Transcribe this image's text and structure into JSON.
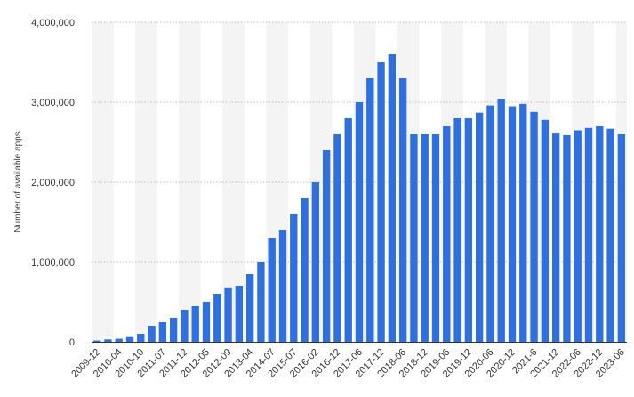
{
  "chart_data": {
    "type": "bar",
    "title": "",
    "xlabel": "",
    "ylabel": "Number of available apps",
    "ylim": [
      0,
      4000000
    ],
    "yticks": [
      {
        "value": 0,
        "label": "0"
      },
      {
        "value": 1000000,
        "label": "1,000,000"
      },
      {
        "value": 2000000,
        "label": "2,000,000"
      },
      {
        "value": 3000000,
        "label": "3,000,000"
      },
      {
        "value": 4000000,
        "label": "4,000,000"
      }
    ],
    "grid": true,
    "legend": "none",
    "bar_color": "#2f6fde",
    "band_color": "#f4f4f4",
    "categories": [
      "2009-12",
      "",
      "2010-04",
      "",
      "2010-10",
      "",
      "2011-07",
      "",
      "2011-12",
      "",
      "2012-05",
      "",
      "2012-09",
      "",
      "2013-04",
      "",
      "2014-07",
      "",
      "2015-07",
      "",
      "2016-02",
      "",
      "2016-12",
      "",
      "2017-06",
      "",
      "2017-12",
      "",
      "2018-06",
      "",
      "2018-12",
      "",
      "2019-06",
      "",
      "2019-12",
      "",
      "2020-06",
      "",
      "2020-12",
      "",
      "2021-6",
      "",
      "2021-12",
      "",
      "2022-06",
      "",
      "2022-12",
      "",
      "2023-06"
    ],
    "values": [
      16000,
      30000,
      38000,
      70000,
      100000,
      200000,
      250000,
      300000,
      400000,
      450000,
      500000,
      600000,
      680000,
      700000,
      850000,
      1000000,
      1300000,
      1400000,
      1600000,
      1800000,
      2000000,
      2400000,
      2600000,
      2800000,
      3000000,
      3300000,
      3500000,
      3600000,
      3300000,
      2600000,
      2600000,
      2600000,
      2700000,
      2800000,
      2800000,
      2870000,
      2960000,
      3040000,
      2950000,
      2980000,
      2880000,
      2780000,
      2610000,
      2590000,
      2650000,
      2680000,
      2700000,
      2670000,
      2600000
    ]
  }
}
